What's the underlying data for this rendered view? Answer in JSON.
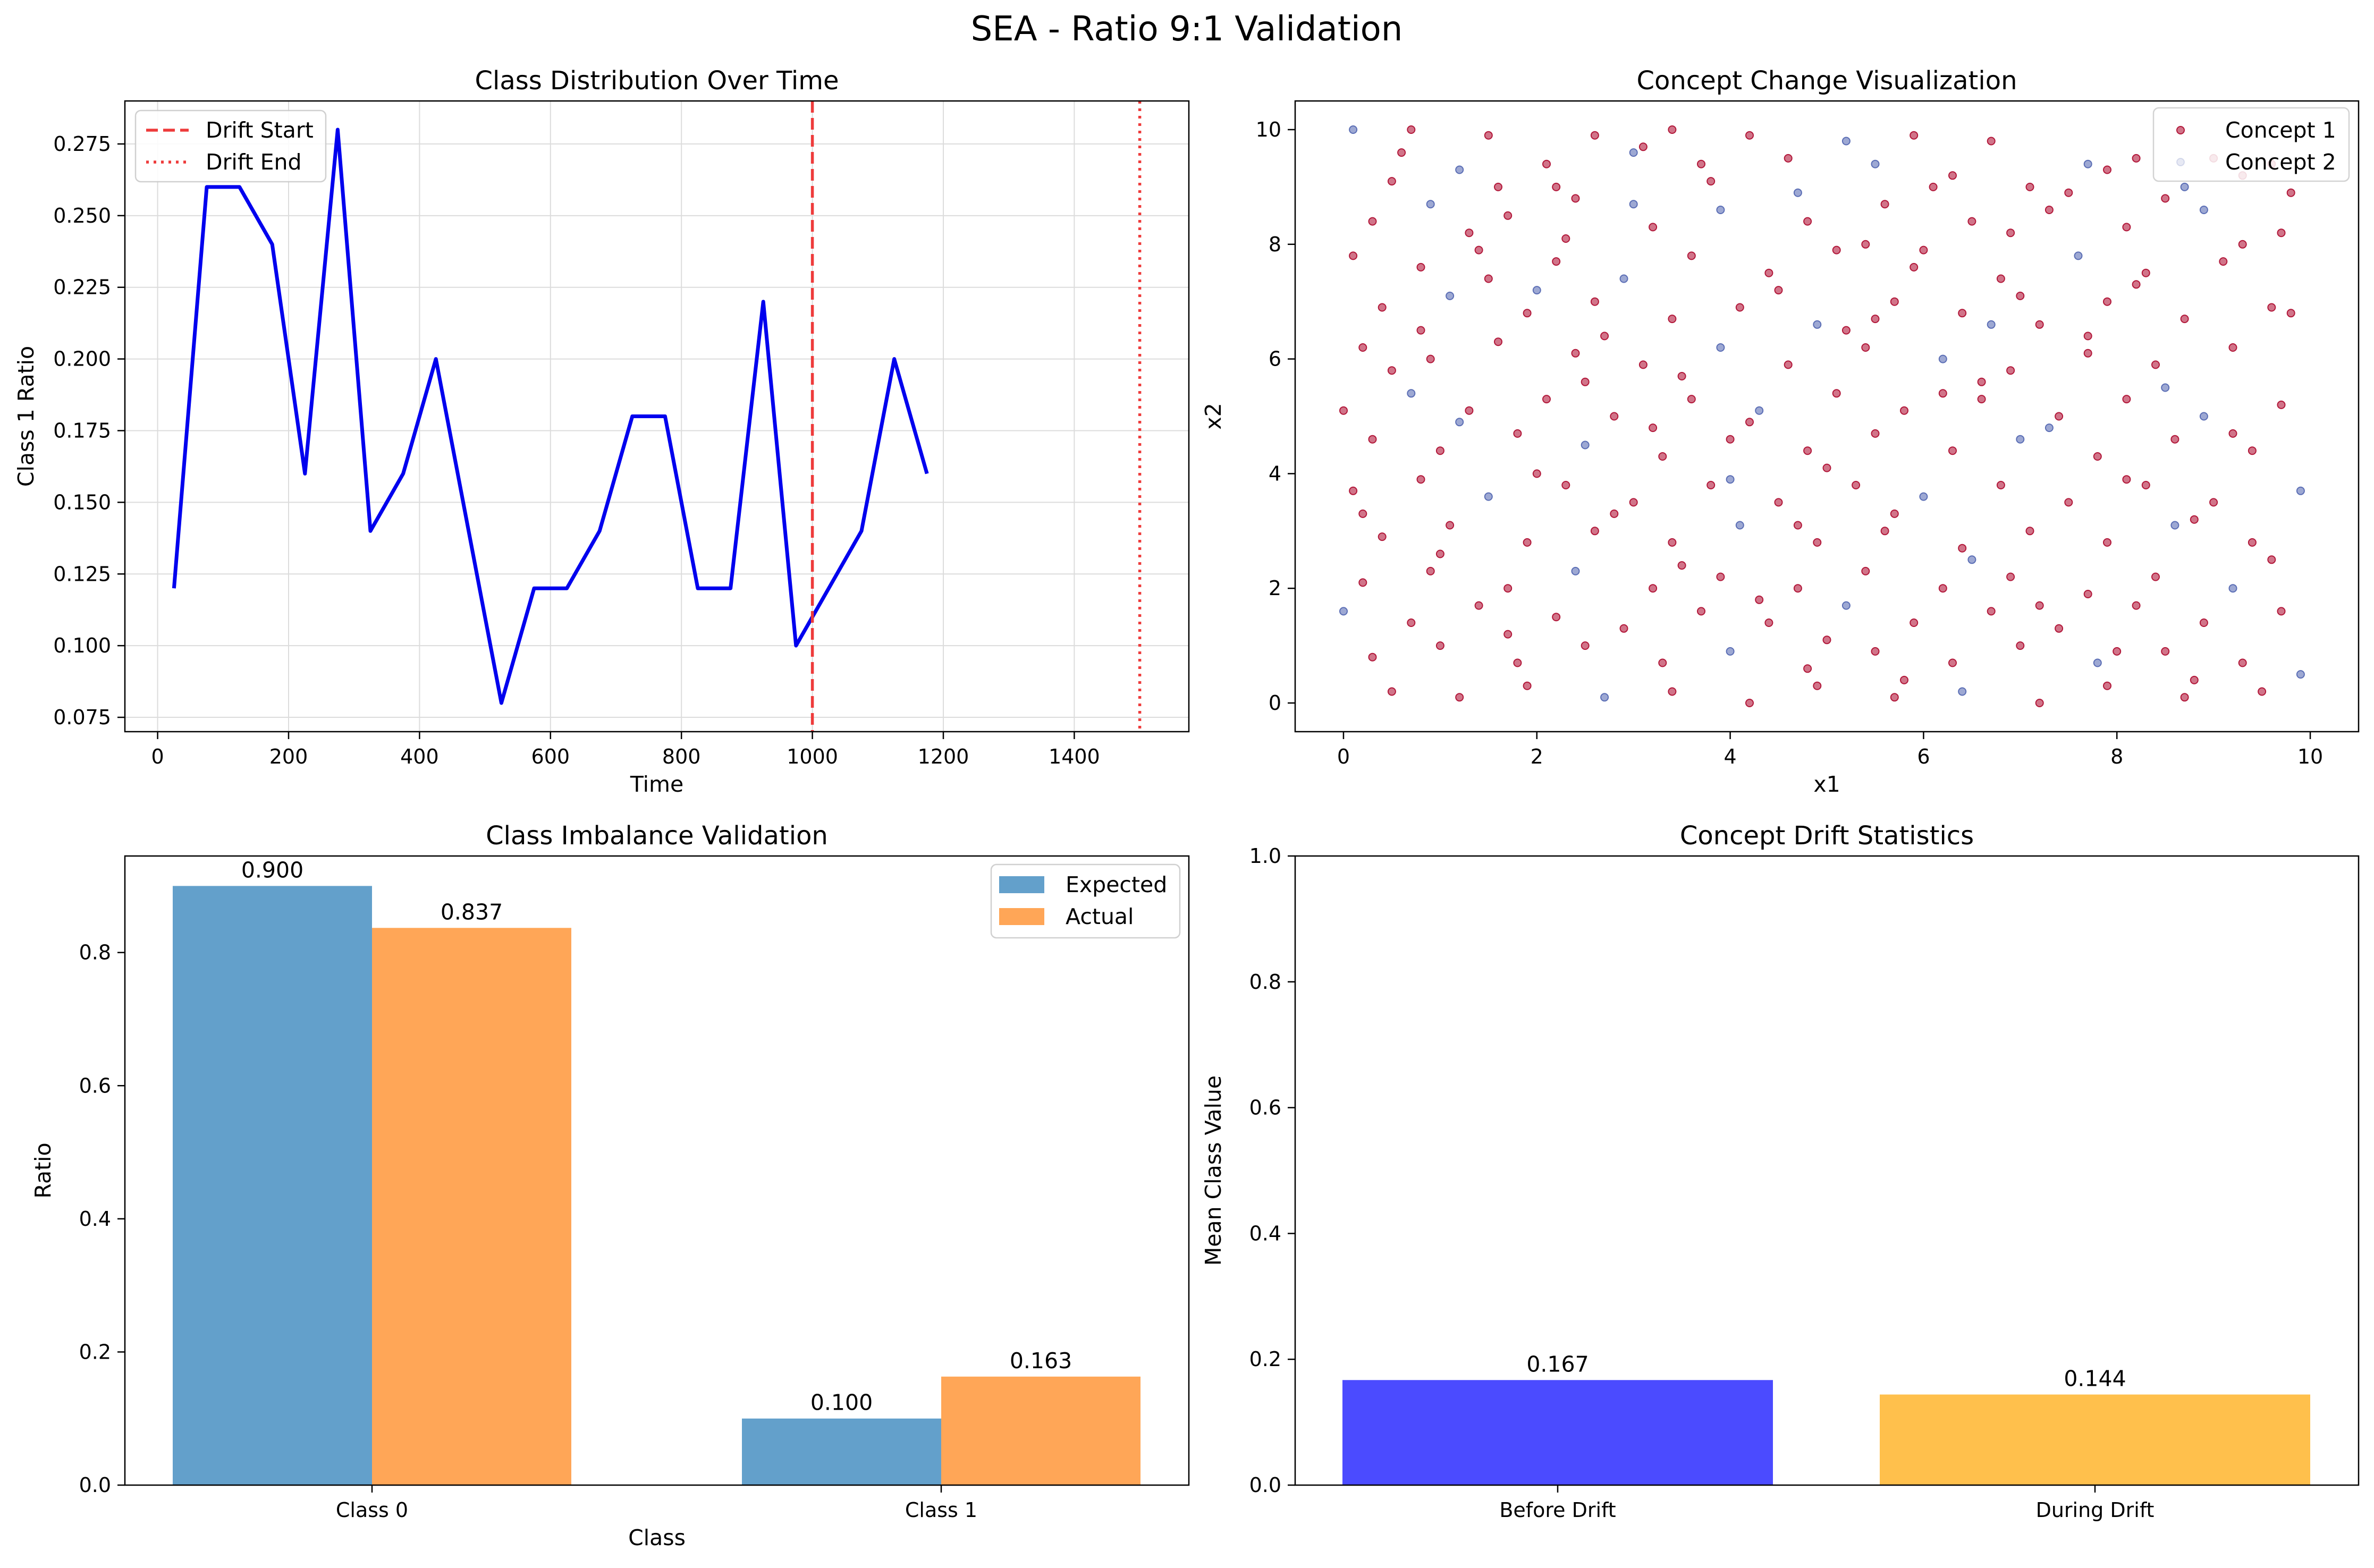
{
  "figure": {
    "suptitle": "SEA - Ratio 9:1 Validation"
  },
  "chart_data": [
    {
      "type": "line",
      "title": "Class Distribution Over Time",
      "xlabel": "Time",
      "ylabel": "Class 1 Ratio",
      "xlim": [
        -50,
        1575
      ],
      "ylim": [
        0.07,
        0.29
      ],
      "xticks": [
        0,
        200,
        400,
        600,
        800,
        1000,
        1200,
        1400
      ],
      "yticks": [
        0.075,
        0.1,
        0.125,
        0.15,
        0.175,
        0.2,
        0.225,
        0.25,
        0.275
      ],
      "ytick_labels": [
        "0.075",
        "0.100",
        "0.125",
        "0.150",
        "0.175",
        "0.200",
        "0.225",
        "0.250",
        "0.275"
      ],
      "grid": true,
      "legend_position": "top-left",
      "series": [
        {
          "color": "#0000ee",
          "x": [
            25,
            75,
            125,
            175,
            225,
            275,
            325,
            375,
            425,
            475,
            525,
            575,
            625,
            675,
            725,
            775,
            825,
            875,
            925,
            975,
            1025,
            1075,
            1125,
            1175
          ],
          "y": [
            0.12,
            0.26,
            0.26,
            0.24,
            0.16,
            0.28,
            0.14,
            0.16,
            0.2,
            0.14,
            0.08,
            0.12,
            0.12,
            0.14,
            0.18,
            0.18,
            0.12,
            0.12,
            0.22,
            0.1,
            0.12,
            0.14,
            0.2,
            0.16
          ]
        }
      ],
      "vlines": [
        {
          "name": "Drift Start",
          "x": 1000,
          "color": "#ee3b3b",
          "style": "dashed"
        },
        {
          "name": "Drift End",
          "x": 1500,
          "color": "#ee3b3b",
          "style": "dotted"
        }
      ]
    },
    {
      "type": "scatter",
      "title": "Concept Change Visualization",
      "xlabel": "x1",
      "ylabel": "x2",
      "xlim": [
        -0.5,
        10.5
      ],
      "ylim": [
        -0.5,
        10.5
      ],
      "xticks": [
        0,
        2,
        4,
        6,
        8,
        10
      ],
      "yticks": [
        0,
        2,
        4,
        6,
        8,
        10
      ],
      "grid": false,
      "legend_position": "top-right",
      "series": [
        {
          "name": "Concept 1",
          "color": "#b2183a"
        },
        {
          "name": "Concept 2",
          "color": "#5b6eb5"
        }
      ],
      "points": [
        [
          0.1,
          10.0,
          1
        ],
        [
          0.7,
          10.0,
          0
        ],
        [
          1.5,
          9.9,
          0
        ],
        [
          2.6,
          9.9,
          0
        ],
        [
          3.4,
          10.0,
          0
        ],
        [
          4.2,
          9.9,
          0
        ],
        [
          5.2,
          9.8,
          1
        ],
        [
          5.9,
          9.9,
          0
        ],
        [
          6.7,
          9.8,
          0
        ],
        [
          8.2,
          9.5,
          0
        ],
        [
          9.3,
          9.2,
          0
        ],
        [
          9.6,
          9.4,
          0
        ],
        [
          0.5,
          9.1,
          0
        ],
        [
          1.2,
          9.3,
          1
        ],
        [
          2.1,
          9.4,
          0
        ],
        [
          3.0,
          9.6,
          1
        ],
        [
          3.8,
          9.1,
          0
        ],
        [
          4.6,
          9.5,
          0
        ],
        [
          5.5,
          9.4,
          1
        ],
        [
          6.3,
          9.2,
          0
        ],
        [
          7.1,
          9.0,
          0
        ],
        [
          7.9,
          9.3,
          0
        ],
        [
          8.7,
          9.0,
          1
        ],
        [
          9.8,
          8.9,
          0
        ],
        [
          0.3,
          8.4,
          0
        ],
        [
          0.9,
          8.7,
          1
        ],
        [
          1.7,
          8.5,
          0
        ],
        [
          2.4,
          8.8,
          0
        ],
        [
          3.2,
          8.3,
          0
        ],
        [
          3.9,
          8.6,
          1
        ],
        [
          4.8,
          8.4,
          0
        ],
        [
          5.6,
          8.7,
          0
        ],
        [
          6.5,
          8.4,
          0
        ],
        [
          7.3,
          8.6,
          0
        ],
        [
          8.1,
          8.3,
          0
        ],
        [
          8.9,
          8.6,
          1
        ],
        [
          9.7,
          8.2,
          0
        ],
        [
          0.1,
          7.8,
          0
        ],
        [
          0.8,
          7.6,
          0
        ],
        [
          1.4,
          7.9,
          0
        ],
        [
          2.2,
          7.7,
          0
        ],
        [
          2.9,
          7.4,
          1
        ],
        [
          3.6,
          7.8,
          0
        ],
        [
          4.4,
          7.5,
          0
        ],
        [
          5.1,
          7.9,
          0
        ],
        [
          5.9,
          7.6,
          0
        ],
        [
          6.8,
          7.4,
          0
        ],
        [
          7.6,
          7.8,
          1
        ],
        [
          8.3,
          7.5,
          0
        ],
        [
          9.1,
          7.7,
          0
        ],
        [
          0.4,
          6.9,
          0
        ],
        [
          1.1,
          7.1,
          1
        ],
        [
          1.9,
          6.8,
          0
        ],
        [
          2.6,
          7.0,
          0
        ],
        [
          3.4,
          6.7,
          0
        ],
        [
          4.1,
          6.9,
          0
        ],
        [
          4.9,
          6.6,
          1
        ],
        [
          5.7,
          7.0,
          0
        ],
        [
          6.4,
          6.8,
          0
        ],
        [
          7.2,
          6.6,
          0
        ],
        [
          7.9,
          7.0,
          0
        ],
        [
          8.7,
          6.7,
          0
        ],
        [
          9.6,
          6.9,
          0
        ],
        [
          0.2,
          6.2,
          0
        ],
        [
          0.9,
          6.0,
          0
        ],
        [
          1.6,
          6.3,
          0
        ],
        [
          2.4,
          6.1,
          0
        ],
        [
          3.1,
          5.9,
          0
        ],
        [
          3.9,
          6.2,
          1
        ],
        [
          4.6,
          5.9,
          0
        ],
        [
          5.4,
          6.2,
          0
        ],
        [
          6.2,
          6.0,
          1
        ],
        [
          6.9,
          5.8,
          0
        ],
        [
          7.7,
          6.1,
          0
        ],
        [
          8.4,
          5.9,
          0
        ],
        [
          9.2,
          6.2,
          0
        ],
        [
          0.0,
          5.1,
          0
        ],
        [
          0.7,
          5.4,
          1
        ],
        [
          1.3,
          5.1,
          0
        ],
        [
          2.1,
          5.3,
          0
        ],
        [
          2.8,
          5.0,
          0
        ],
        [
          3.6,
          5.3,
          0
        ],
        [
          4.3,
          5.1,
          1
        ],
        [
          5.1,
          5.4,
          0
        ],
        [
          5.8,
          5.1,
          0
        ],
        [
          6.6,
          5.3,
          0
        ],
        [
          7.4,
          5.0,
          0
        ],
        [
          8.1,
          5.3,
          0
        ],
        [
          8.9,
          5.0,
          1
        ],
        [
          9.7,
          5.2,
          0
        ],
        [
          0.3,
          4.6,
          0
        ],
        [
          1.0,
          4.4,
          0
        ],
        [
          1.8,
          4.7,
          0
        ],
        [
          2.5,
          4.5,
          1
        ],
        [
          3.3,
          4.3,
          0
        ],
        [
          4.0,
          4.6,
          0
        ],
        [
          4.8,
          4.4,
          0
        ],
        [
          5.5,
          4.7,
          0
        ],
        [
          6.3,
          4.4,
          0
        ],
        [
          7.0,
          4.6,
          1
        ],
        [
          7.8,
          4.3,
          0
        ],
        [
          8.6,
          4.6,
          0
        ],
        [
          9.4,
          4.4,
          0
        ],
        [
          0.1,
          3.7,
          0
        ],
        [
          0.8,
          3.9,
          0
        ],
        [
          1.5,
          3.6,
          1
        ],
        [
          2.3,
          3.8,
          0
        ],
        [
          3.0,
          3.5,
          0
        ],
        [
          3.8,
          3.8,
          0
        ],
        [
          4.5,
          3.5,
          0
        ],
        [
          5.3,
          3.8,
          0
        ],
        [
          6.0,
          3.6,
          1
        ],
        [
          6.8,
          3.8,
          0
        ],
        [
          7.5,
          3.5,
          0
        ],
        [
          8.3,
          3.8,
          0
        ],
        [
          9.0,
          3.5,
          0
        ],
        [
          9.9,
          3.7,
          1
        ],
        [
          0.4,
          2.9,
          0
        ],
        [
          1.1,
          3.1,
          0
        ],
        [
          1.9,
          2.8,
          0
        ],
        [
          2.6,
          3.0,
          0
        ],
        [
          3.4,
          2.8,
          0
        ],
        [
          4.1,
          3.1,
          1
        ],
        [
          4.9,
          2.8,
          0
        ],
        [
          5.6,
          3.0,
          0
        ],
        [
          6.4,
          2.7,
          0
        ],
        [
          7.1,
          3.0,
          0
        ],
        [
          7.9,
          2.8,
          0
        ],
        [
          8.6,
          3.1,
          1
        ],
        [
          9.4,
          2.8,
          0
        ],
        [
          0.2,
          2.1,
          0
        ],
        [
          0.9,
          2.3,
          0
        ],
        [
          1.7,
          2.0,
          0
        ],
        [
          2.4,
          2.3,
          1
        ],
        [
          3.2,
          2.0,
          0
        ],
        [
          3.9,
          2.2,
          0
        ],
        [
          4.7,
          2.0,
          0
        ],
        [
          5.4,
          2.3,
          0
        ],
        [
          6.2,
          2.0,
          0
        ],
        [
          6.9,
          2.2,
          0
        ],
        [
          7.7,
          1.9,
          0
        ],
        [
          8.4,
          2.2,
          0
        ],
        [
          9.2,
          2.0,
          1
        ],
        [
          0.0,
          1.6,
          1
        ],
        [
          0.7,
          1.4,
          0
        ],
        [
          1.4,
          1.7,
          0
        ],
        [
          2.2,
          1.5,
          0
        ],
        [
          2.9,
          1.3,
          0
        ],
        [
          3.7,
          1.6,
          0
        ],
        [
          4.4,
          1.4,
          0
        ],
        [
          5.2,
          1.7,
          1
        ],
        [
          5.9,
          1.4,
          0
        ],
        [
          6.7,
          1.6,
          0
        ],
        [
          7.4,
          1.3,
          0
        ],
        [
          8.2,
          1.7,
          0
        ],
        [
          8.9,
          1.4,
          0
        ],
        [
          9.7,
          1.6,
          0
        ],
        [
          0.3,
          0.8,
          0
        ],
        [
          1.0,
          1.0,
          0
        ],
        [
          1.8,
          0.7,
          0
        ],
        [
          2.5,
          1.0,
          0
        ],
        [
          3.3,
          0.7,
          0
        ],
        [
          4.0,
          0.9,
          1
        ],
        [
          4.8,
          0.6,
          0
        ],
        [
          5.5,
          0.9,
          0
        ],
        [
          6.3,
          0.7,
          0
        ],
        [
          7.0,
          1.0,
          0
        ],
        [
          7.8,
          0.7,
          1
        ],
        [
          8.5,
          0.9,
          0
        ],
        [
          9.3,
          0.7,
          0
        ],
        [
          0.5,
          0.2,
          0
        ],
        [
          1.2,
          0.1,
          0
        ],
        [
          1.9,
          0.3,
          0
        ],
        [
          2.7,
          0.1,
          1
        ],
        [
          3.4,
          0.2,
          0
        ],
        [
          4.2,
          0.0,
          0
        ],
        [
          4.9,
          0.3,
          0
        ],
        [
          5.7,
          0.1,
          0
        ],
        [
          6.4,
          0.2,
          1
        ],
        [
          7.2,
          0.0,
          0
        ],
        [
          7.9,
          0.3,
          0
        ],
        [
          8.7,
          0.1,
          0
        ],
        [
          9.5,
          0.2,
          0
        ],
        [
          9.9,
          0.5,
          1
        ],
        [
          0.6,
          9.6,
          0
        ],
        [
          1.3,
          8.2,
          0
        ],
        [
          2.0,
          7.2,
          1
        ],
        [
          2.7,
          6.4,
          0
        ],
        [
          3.5,
          5.7,
          0
        ],
        [
          4.2,
          4.9,
          0
        ],
        [
          5.0,
          4.1,
          0
        ],
        [
          5.7,
          3.3,
          0
        ],
        [
          6.5,
          2.5,
          1
        ],
        [
          7.2,
          1.7,
          0
        ],
        [
          8.0,
          0.9,
          0
        ],
        [
          8.8,
          0.4,
          0
        ],
        [
          1.6,
          9.0,
          0
        ],
        [
          2.3,
          8.1,
          0
        ],
        [
          3.1,
          9.7,
          0
        ],
        [
          4.7,
          8.9,
          1
        ],
        [
          5.4,
          8.0,
          0
        ],
        [
          6.1,
          9.0,
          0
        ],
        [
          6.9,
          8.2,
          0
        ],
        [
          7.7,
          9.4,
          1
        ],
        [
          8.5,
          8.8,
          0
        ],
        [
          9.3,
          8.0,
          0
        ],
        [
          0.5,
          5.8,
          0
        ],
        [
          1.2,
          4.9,
          1
        ],
        [
          2.0,
          4.0,
          0
        ],
        [
          2.8,
          3.3,
          0
        ],
        [
          3.5,
          2.4,
          0
        ],
        [
          4.3,
          1.8,
          0
        ],
        [
          5.0,
          1.1,
          0
        ],
        [
          5.8,
          0.4,
          0
        ],
        [
          6.6,
          5.6,
          0
        ],
        [
          7.3,
          4.8,
          1
        ],
        [
          8.1,
          3.9,
          0
        ],
        [
          8.8,
          3.2,
          0
        ],
        [
          9.6,
          2.5,
          0
        ],
        [
          1.0,
          2.6,
          0
        ],
        [
          1.7,
          1.2,
          0
        ],
        [
          2.5,
          5.6,
          0
        ],
        [
          3.2,
          4.8,
          0
        ],
        [
          4.0,
          3.9,
          1
        ],
        [
          4.7,
          3.1,
          0
        ],
        [
          5.5,
          6.7,
          0
        ],
        [
          6.2,
          5.4,
          0
        ],
        [
          7.0,
          7.1,
          0
        ],
        [
          7.7,
          6.4,
          0
        ],
        [
          8.5,
          5.5,
          1
        ],
        [
          9.2,
          4.7,
          0
        ],
        [
          0.2,
          3.3,
          0
        ],
        [
          0.8,
          6.5,
          0
        ],
        [
          1.5,
          7.4,
          0
        ],
        [
          2.2,
          9.0,
          0
        ],
        [
          3.0,
          8.7,
          1
        ],
        [
          3.7,
          9.4,
          0
        ],
        [
          4.5,
          7.2,
          0
        ],
        [
          5.2,
          6.5,
          0
        ],
        [
          6.0,
          7.9,
          0
        ],
        [
          6.7,
          6.6,
          1
        ],
        [
          7.5,
          8.9,
          0
        ],
        [
          8.2,
          7.3,
          0
        ],
        [
          9.0,
          9.5,
          0
        ],
        [
          9.8,
          6.8,
          0
        ]
      ]
    },
    {
      "type": "bar",
      "title": "Class Imbalance Validation",
      "xlabel": "Class",
      "ylabel": "Ratio",
      "categories": [
        "Class 0",
        "Class 1"
      ],
      "ylim": [
        0,
        0.945
      ],
      "yticks": [
        0.0,
        0.2,
        0.4,
        0.6,
        0.8
      ],
      "ytick_labels": [
        "0.0",
        "0.2",
        "0.4",
        "0.6",
        "0.8"
      ],
      "legend_position": "top-right",
      "series": [
        {
          "name": "Expected",
          "color": "#63a0cb",
          "values": [
            0.9,
            0.1
          ],
          "labels": [
            "0.900",
            "0.100"
          ]
        },
        {
          "name": "Actual",
          "color": "#ffa657",
          "values": [
            0.837,
            0.163
          ],
          "labels": [
            "0.837",
            "0.163"
          ]
        }
      ]
    },
    {
      "type": "bar",
      "title": "Concept Drift Statistics",
      "xlabel": "",
      "ylabel": "Mean Class Value",
      "categories": [
        "Before Drift",
        "During Drift"
      ],
      "ylim": [
        0,
        1.0
      ],
      "yticks": [
        0.0,
        0.2,
        0.4,
        0.6,
        0.8,
        1.0
      ],
      "ytick_labels": [
        "0.0",
        "0.2",
        "0.4",
        "0.6",
        "0.8",
        "1.0"
      ],
      "series": [
        {
          "colors": [
            "#4b4bff",
            "#ffc04c"
          ],
          "values": [
            0.167,
            0.144
          ],
          "labels": [
            "0.167",
            "0.144"
          ]
        }
      ]
    }
  ]
}
